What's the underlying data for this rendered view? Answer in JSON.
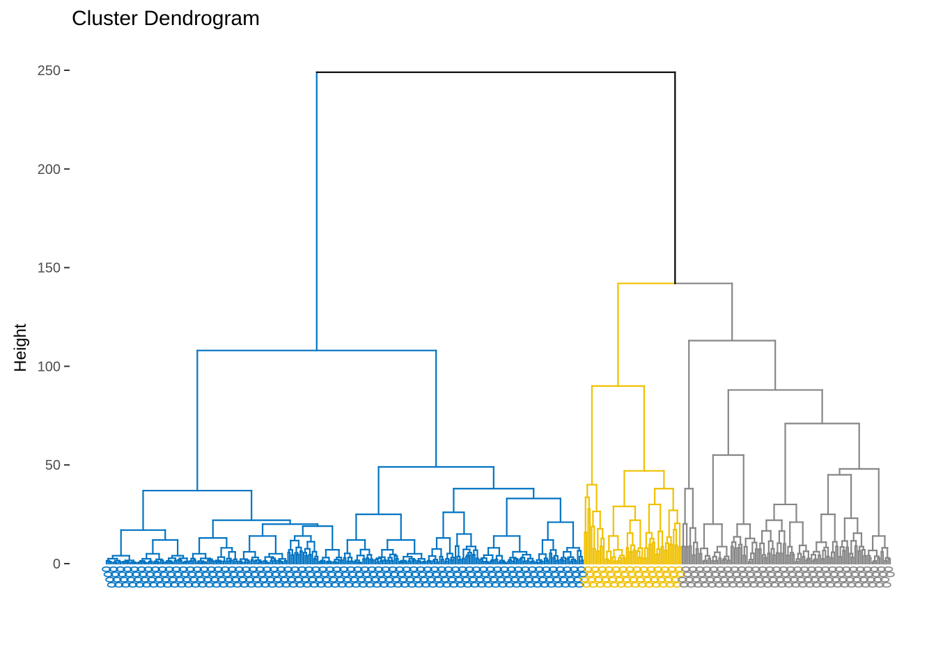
{
  "chart_data": {
    "type": "dendrogram",
    "title": "Cluster Dendrogram",
    "xlabel": "",
    "ylabel": "Height",
    "ylim": [
      0,
      250
    ],
    "yticks": [
      0,
      50,
      100,
      150,
      200,
      250
    ],
    "grid": false,
    "cluster_colors": {
      "cluster_1": "#0073C2",
      "cluster_2": "#EFC000",
      "cluster_3": "#868686",
      "root": "#000000"
    },
    "root": {
      "height": 249,
      "children": [
        {
          "height": 108,
          "cluster": "cluster_1",
          "children": [
            {
              "height": 37,
              "cluster": "cluster_1",
              "children": [
                {
                  "height": 17,
                  "cluster": "cluster_1",
                  "children": [
                    {
                      "height": 4,
                      "leaves": 18,
                      "cluster": "cluster_1"
                    },
                    {
                      "height": 12,
                      "cluster": "cluster_1",
                      "children": [
                        {
                          "height": 5,
                          "leaves": 16,
                          "cluster": "cluster_1"
                        },
                        {
                          "height": 4,
                          "leaves": 14,
                          "cluster": "cluster_1"
                        }
                      ]
                    }
                  ]
                },
                {
                  "height": 22,
                  "cluster": "cluster_1",
                  "children": [
                    {
                      "height": 13,
                      "cluster": "cluster_1",
                      "children": [
                        {
                          "height": 5,
                          "leaves": 14,
                          "cluster": "cluster_1"
                        },
                        {
                          "height": 8,
                          "leaves": 14,
                          "cluster": "cluster_1"
                        }
                      ]
                    },
                    {
                      "height": 20,
                      "cluster": "cluster_1",
                      "children": [
                        {
                          "height": 14,
                          "cluster": "cluster_1",
                          "children": [
                            {
                              "height": 6,
                              "leaves": 14,
                              "cluster": "cluster_1"
                            },
                            {
                              "height": 5,
                              "leaves": 14,
                              "cluster": "cluster_1"
                            }
                          ]
                        },
                        {
                          "height": 19,
                          "cluster": "cluster_1",
                          "children": [
                            {
                              "height": 14,
                              "leaves": 18,
                              "cluster": "cluster_1"
                            },
                            {
                              "height": 7,
                              "leaves": 14,
                              "cluster": "cluster_1"
                            }
                          ]
                        }
                      ]
                    }
                  ]
                }
              ]
            },
            {
              "height": 49,
              "cluster": "cluster_1",
              "children": [
                {
                  "height": 25,
                  "cluster": "cluster_1",
                  "children": [
                    {
                      "height": 12,
                      "leaves": 18,
                      "cluster": "cluster_1"
                    },
                    {
                      "height": 12,
                      "cluster": "cluster_1",
                      "children": [
                        {
                          "height": 7,
                          "leaves": 14,
                          "cluster": "cluster_1"
                        },
                        {
                          "height": 5,
                          "leaves": 16,
                          "cluster": "cluster_1"
                        }
                      ]
                    }
                  ]
                },
                {
                  "height": 38,
                  "cluster": "cluster_1",
                  "children": [
                    {
                      "height": 26,
                      "cluster": "cluster_1",
                      "children": [
                        {
                          "height": 13,
                          "leaves": 16,
                          "cluster": "cluster_1"
                        },
                        {
                          "height": 15,
                          "leaves": 14,
                          "cluster": "cluster_1"
                        }
                      ]
                    },
                    {
                      "height": 33,
                      "cluster": "cluster_1",
                      "children": [
                        {
                          "height": 14,
                          "cluster": "cluster_1",
                          "children": [
                            {
                              "height": 8,
                              "leaves": 16,
                              "cluster": "cluster_1"
                            },
                            {
                              "height": 6,
                              "leaves": 16,
                              "cluster": "cluster_1"
                            }
                          ]
                        },
                        {
                          "height": 21,
                          "cluster": "cluster_1",
                          "children": [
                            {
                              "height": 12,
                              "leaves": 14,
                              "cluster": "cluster_1"
                            },
                            {
                              "height": 8,
                              "leaves": 14,
                              "cluster": "cluster_1"
                            }
                          ]
                        }
                      ]
                    }
                  ]
                }
              ]
            }
          ]
        },
        {
          "height": 142,
          "cluster": "root",
          "children": [
            {
              "height": 90,
              "cluster": "cluster_2",
              "children": [
                {
                  "height": 40,
                  "leaves": 12,
                  "cluster": "cluster_2"
                },
                {
                  "height": 47,
                  "cluster": "cluster_2",
                  "children": [
                    {
                      "height": 29,
                      "cluster": "cluster_2",
                      "children": [
                        {
                          "height": 14,
                          "leaves": 12,
                          "cluster": "cluster_2"
                        },
                        {
                          "height": 22,
                          "leaves": 10,
                          "cluster": "cluster_2"
                        }
                      ]
                    },
                    {
                      "height": 38,
                      "cluster": "cluster_2",
                      "children": [
                        {
                          "height": 30,
                          "leaves": 12,
                          "cluster": "cluster_2"
                        },
                        {
                          "height": 27,
                          "leaves": 10,
                          "cluster": "cluster_2"
                        }
                      ]
                    }
                  ]
                }
              ]
            },
            {
              "height": 113,
              "cluster": "cluster_3",
              "children": [
                {
                  "height": 38,
                  "leaves": 10,
                  "cluster": "cluster_3"
                },
                {
                  "height": 88,
                  "cluster": "cluster_3",
                  "children": [
                    {
                      "height": 55,
                      "cluster": "cluster_3",
                      "children": [
                        {
                          "height": 20,
                          "leaves": 18,
                          "cluster": "cluster_3"
                        },
                        {
                          "height": 20,
                          "leaves": 16,
                          "cluster": "cluster_3"
                        }
                      ]
                    },
                    {
                      "height": 71,
                      "cluster": "cluster_3",
                      "children": [
                        {
                          "height": 30,
                          "cluster": "cluster_3",
                          "children": [
                            {
                              "height": 22,
                              "leaves": 16,
                              "cluster": "cluster_3"
                            },
                            {
                              "height": 21,
                              "leaves": 14,
                              "cluster": "cluster_3"
                            }
                          ]
                        },
                        {
                          "height": 48,
                          "cluster": "cluster_3",
                          "children": [
                            {
                              "height": 45,
                              "cluster": "cluster_3",
                              "children": [
                                {
                                  "height": 25,
                                  "leaves": 16,
                                  "cluster": "cluster_3"
                                },
                                {
                                  "height": 23,
                                  "leaves": 16,
                                  "cluster": "cluster_3"
                                }
                              ]
                            },
                            {
                              "height": 14,
                              "leaves": 14,
                              "cluster": "cluster_3"
                            }
                          ]
                        }
                      ]
                    }
                  ]
                }
              ]
            }
          ]
        }
      ]
    }
  }
}
